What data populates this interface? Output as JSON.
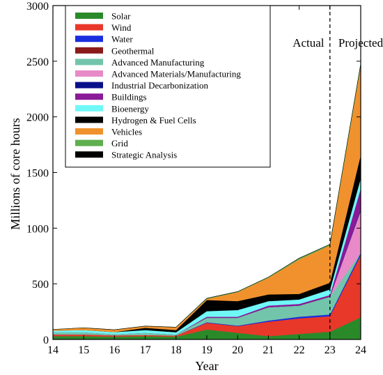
{
  "chart_data": {
    "type": "area",
    "stacked": true,
    "xlabel": "Year",
    "ylabel": "Millions of core hours",
    "x": [
      14,
      15,
      16,
      17,
      18,
      19,
      20,
      21,
      22,
      23,
      24
    ],
    "x_tick_labels": [
      "14",
      "15",
      "16",
      "17",
      "18",
      "19",
      "20",
      "21",
      "22",
      "23",
      "24"
    ],
    "xlim": [
      14,
      24
    ],
    "ylim": [
      0,
      3000
    ],
    "y_ticks": [
      0,
      500,
      1000,
      1500,
      2000,
      2500,
      3000
    ],
    "grid": false,
    "legend_position": "top-left",
    "annotations": [
      {
        "text": "Actual",
        "x": 22.3
      },
      {
        "text": "Projected",
        "x": 24.0
      }
    ],
    "divider_x": 23,
    "series": [
      {
        "name": "Solar",
        "color": "#2a8a2a",
        "values": [
          30,
          30,
          25,
          30,
          25,
          90,
          60,
          30,
          50,
          70,
          200
        ]
      },
      {
        "name": "Wind",
        "color": "#e8382a",
        "values": [
          15,
          15,
          12,
          10,
          10,
          60,
          60,
          130,
          140,
          140,
          560
        ]
      },
      {
        "name": "Water",
        "color": "#1a2ee0",
        "values": [
          0,
          0,
          0,
          0,
          0,
          5,
          5,
          10,
          15,
          15,
          20
        ]
      },
      {
        "name": "Geothermal",
        "color": "#8b1a1a",
        "values": [
          0,
          0,
          0,
          0,
          0,
          0,
          0,
          0,
          0,
          0,
          0
        ]
      },
      {
        "name": "Advanced Manufacturing",
        "color": "#72c5aa",
        "values": [
          20,
          20,
          10,
          20,
          10,
          40,
          70,
          120,
          100,
          160,
          0
        ]
      },
      {
        "name": "Advanced Materials/Manufacturing",
        "color": "#e88ac8",
        "values": [
          0,
          0,
          0,
          0,
          0,
          0,
          0,
          0,
          0,
          0,
          380
        ]
      },
      {
        "name": "Industrial Decarbonization",
        "color": "#0a108a",
        "values": [
          0,
          0,
          0,
          0,
          0,
          0,
          0,
          0,
          0,
          0,
          10
        ]
      },
      {
        "name": "Buildings",
        "color": "#8a1a98",
        "values": [
          0,
          0,
          0,
          0,
          0,
          10,
          10,
          15,
          15,
          15,
          190
        ]
      },
      {
        "name": "Bioenergy",
        "color": "#70f8f8",
        "values": [
          15,
          20,
          20,
          25,
          20,
          50,
          60,
          40,
          40,
          50,
          90
        ]
      },
      {
        "name": "Hydrogen & Fuel Cells",
        "color": "#000000",
        "values": [
          0,
          0,
          0,
          20,
          20,
          100,
          80,
          60,
          50,
          60,
          210
        ]
      },
      {
        "name": "Vehicles",
        "color": "#f0912e",
        "values": [
          10,
          20,
          20,
          15,
          25,
          10,
          80,
          150,
          310,
          335,
          800
        ]
      },
      {
        "name": "Grid",
        "color": "#60ae50",
        "values": [
          0,
          0,
          0,
          0,
          0,
          5,
          5,
          5,
          10,
          10,
          15
        ]
      },
      {
        "name": "Strategic Analysis",
        "color": "#000000",
        "values": [
          0,
          0,
          0,
          0,
          0,
          0,
          0,
          0,
          0,
          0,
          0
        ]
      }
    ]
  }
}
